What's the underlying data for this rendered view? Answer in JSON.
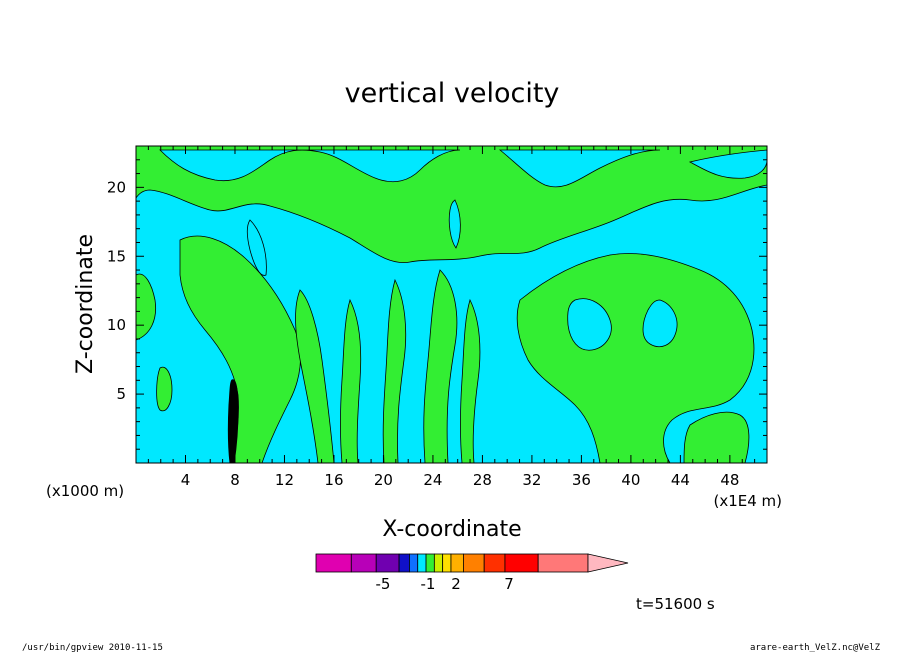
{
  "chart_data": {
    "type": "heatmap",
    "title": "vertical velocity",
    "xlabel": "X-coordinate",
    "ylabel": "Z-coordinate",
    "x_unit": "(x1000 m)",
    "x_multiplier": "(x1E4 m)",
    "xlim": [
      0,
      51
    ],
    "ylim": [
      0,
      23
    ],
    "x_ticks": [
      4,
      8,
      12,
      16,
      20,
      24,
      28,
      32,
      36,
      40,
      44,
      48
    ],
    "y_ticks": [
      5,
      10,
      15,
      20
    ],
    "background_level_color": "#00e8ff",
    "positive_level_color": "#33ee33",
    "colorbar": {
      "colors": [
        "#e000b0",
        "#b800b8",
        "#7000b0",
        "#1010c8",
        "#1070ff",
        "#00e8ff",
        "#33ee33",
        "#ccf000",
        "#ffe000",
        "#ffb000",
        "#ff8000",
        "#ff3000",
        "#ff0000",
        "#ff7878",
        "#ffb8c0"
      ],
      "tick_labels": [
        "-5",
        "-1",
        "2",
        "7"
      ]
    },
    "time_label": "t=51600 s"
  },
  "footer": {
    "left": "/usr/bin/gpview   2010-11-15",
    "right": "arare-earth_VelZ.nc@VelZ"
  }
}
